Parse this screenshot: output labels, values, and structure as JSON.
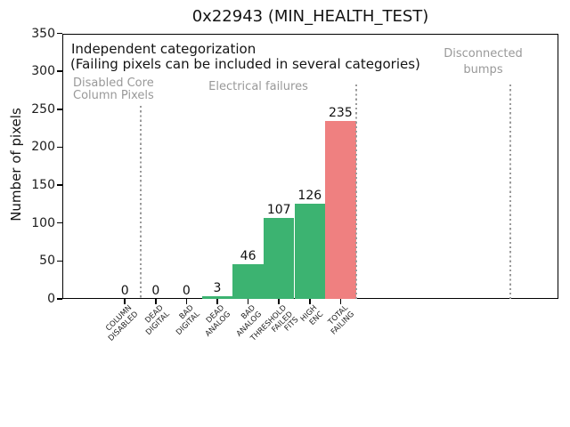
{
  "chart_data": {
    "type": "bar",
    "title": "0x22943 (MIN_HEALTH_TEST)",
    "ylabel": "Number of pixels",
    "xlabel": "",
    "ylim": [
      0,
      350
    ],
    "yticks": [
      0,
      50,
      100,
      150,
      200,
      250,
      300,
      350
    ],
    "grid": false,
    "legend": false,
    "categories": [
      "COLUMN\nDISABLED",
      "DEAD\nDIGITAL",
      "BAD\nDIGITAL",
      "DEAD\nANALOG",
      "BAD\nANALOG",
      "THRESHOLD\nFAILED\nFITS",
      "HIGH\nENC",
      "TOTAL\nFAILING"
    ],
    "values": [
      0,
      0,
      0,
      3,
      46,
      107,
      126,
      235
    ],
    "bar_colors": [
      "#3cb371",
      "#3cb371",
      "#3cb371",
      "#3cb371",
      "#3cb371",
      "#3cb371",
      "#3cb371",
      "#ef8080"
    ],
    "separators_x_units": [
      0.5,
      7.5,
      12.5
    ],
    "annotations": {
      "independent_line1": "Independent categorization",
      "independent_line2": "(Failing pixels can be included in several categories)",
      "region_left": "Disabled Core\nColumn Pixels",
      "region_middle": "Electrical failures",
      "region_right": "Disconnected\nbumps"
    },
    "colors": {
      "bar_green": "#3cb371",
      "bar_red": "#ef8080",
      "annotation_gray": "#999999",
      "separator_gray": "#9a9a9a",
      "axis": "#000000"
    }
  }
}
